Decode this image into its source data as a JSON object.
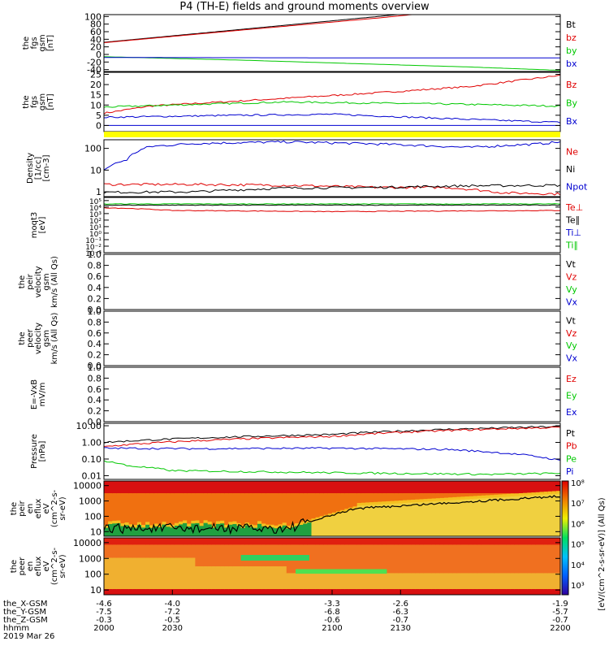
{
  "title": "P4 (TH-E) fields and ground moments overview",
  "panels": [
    {
      "id": "fgs",
      "ylabel": [
        "the",
        "fgs",
        "gsm",
        "[nT]"
      ],
      "yrange": [
        -45,
        105
      ],
      "scale": "linear",
      "ticks": [
        -40,
        -20,
        0,
        20,
        40,
        60,
        80,
        100
      ],
      "legend": [
        {
          "label": "Bt",
          "color": "#000000"
        },
        {
          "label": "bz",
          "color": "#e00000"
        },
        {
          "label": "by",
          "color": "#00c800"
        },
        {
          "label": "bx",
          "color": "#0000d0"
        }
      ],
      "series": [
        {
          "name": "Bt",
          "color": "#000000",
          "x": [
            2000,
            2060,
            2120,
            2150
          ],
          "y": [
            32,
            66,
            100,
            118
          ]
        },
        {
          "name": "bz",
          "color": "#e00000",
          "x": [
            2000,
            2060,
            2120,
            2150
          ],
          "y": [
            31,
            64,
            96,
            114
          ]
        },
        {
          "name": "by",
          "color": "#00c800",
          "x": [
            2000,
            2060,
            2120,
            2160,
            2200
          ],
          "y": [
            -6,
            -15,
            -26,
            -33,
            -42
          ]
        },
        {
          "name": "bx",
          "color": "#0000d0",
          "x": [
            2000,
            2100,
            2200
          ],
          "y": [
            -8,
            -9,
            -9
          ]
        }
      ]
    },
    {
      "id": "fgs-dsl",
      "ylabel": [
        "the",
        "fgs",
        "gsm",
        "[nT]"
      ],
      "yrange": [
        -3,
        26
      ],
      "scale": "linear",
      "ticks": [
        0,
        5,
        10,
        15,
        20,
        25
      ],
      "legend": [
        {
          "label": "Bz",
          "color": "#e00000"
        },
        {
          "label": "By",
          "color": "#00c800"
        },
        {
          "label": "Bx",
          "color": "#0000d0"
        }
      ],
      "series": [
        {
          "name": "Bz",
          "color": "#e00000",
          "x": [
            2000,
            2020,
            2060,
            2120,
            2160,
            2200
          ],
          "y": [
            6,
            9.5,
            12,
            16,
            19,
            24.5
          ]
        },
        {
          "name": "By",
          "color": "#00c800",
          "x": [
            2000,
            2030,
            2080,
            2150,
            2200
          ],
          "y": [
            9,
            10,
            11.5,
            10.5,
            9.5
          ]
        },
        {
          "name": "Bx",
          "color": "#0000d0",
          "x": [
            2000,
            2060,
            2100,
            2160,
            2200
          ],
          "y": [
            4,
            5,
            5.5,
            3,
            1.5
          ]
        },
        {
          "name": "zero",
          "color": "#0000d0",
          "x": [
            2000,
            2200
          ],
          "y": [
            0,
            0
          ]
        }
      ]
    },
    {
      "id": "density",
      "ylabel": [
        "Density",
        "[1/cc]",
        "[cm-3]"
      ],
      "yrange": [
        0.6,
        250
      ],
      "scale": "log",
      "ticks": [
        1,
        10,
        100
      ],
      "legend": [
        {
          "label": "Ne",
          "color": "#e00000"
        },
        {
          "label": "Ni",
          "color": "#000000"
        },
        {
          "label": "Npot",
          "color": "#0000d0"
        }
      ],
      "series": [
        {
          "name": "Npot",
          "color": "#0000d0",
          "x": [
            2000,
            2010,
            2020,
            2040,
            2080,
            2120,
            2160,
            2190,
            2200
          ],
          "y": [
            10,
            30,
            120,
            170,
            200,
            160,
            110,
            160,
            200
          ]
        },
        {
          "name": "Ne",
          "color": "#e00000",
          "x": [
            2000,
            2040,
            2080,
            2120,
            2150,
            2175,
            2200
          ],
          "y": [
            2.2,
            2.2,
            2.0,
            1.6,
            1.6,
            0.9,
            0.8
          ]
        },
        {
          "name": "Ni",
          "color": "#000000",
          "x": [
            2000,
            2040,
            2080,
            2120,
            2160,
            2200
          ],
          "y": [
            0.95,
            1.0,
            1.5,
            1.6,
            1.9,
            2.0
          ]
        }
      ]
    },
    {
      "id": "moqt",
      "ylabel": [
        "moqt3",
        "[eV]"
      ],
      "yrange": [
        0.001,
        300000
      ],
      "scale": "log",
      "ticks": [
        0.001,
        0.01,
        0.1,
        1,
        10,
        100,
        1000,
        10000,
        100000
      ],
      "legend": [
        {
          "label": "Te⊥",
          "color": "#e00000"
        },
        {
          "label": "Te∥",
          "color": "#000000"
        },
        {
          "label": "Ti⊥",
          "color": "#0000d0"
        },
        {
          "label": "Ti∥",
          "color": "#00c800"
        }
      ],
      "series": [
        {
          "name": "Ti",
          "color": "#00c800",
          "x": [
            2000,
            2200
          ],
          "y": [
            30000,
            30000
          ]
        },
        {
          "name": "Te",
          "color": "#000000",
          "x": [
            2000,
            2200
          ],
          "y": [
            20000,
            20000
          ]
        },
        {
          "name": "Tep",
          "color": "#e00000",
          "x": [
            2000,
            2030,
            2100,
            2200
          ],
          "y": [
            8000,
            3000,
            2000,
            3000
          ]
        }
      ]
    },
    {
      "id": "peir-vel",
      "ylabel": [
        "the",
        "peir",
        "velocity",
        "gsm",
        "km/s (All Qs)"
      ],
      "yrange": [
        0,
        1
      ],
      "scale": "linear",
      "ticks": [
        0.0,
        0.2,
        0.4,
        0.6,
        0.8,
        1.0
      ],
      "legend": [
        {
          "label": "Vt",
          "color": "#000000"
        },
        {
          "label": "Vz",
          "color": "#e00000"
        },
        {
          "label": "Vy",
          "color": "#00c800"
        },
        {
          "label": "Vx",
          "color": "#0000d0"
        }
      ],
      "series": []
    },
    {
      "id": "peer-vel",
      "ylabel": [
        "the",
        "peer",
        "velocity",
        "gsm",
        "km/s (All Qs)"
      ],
      "yrange": [
        0,
        1
      ],
      "scale": "linear",
      "ticks": [
        0.0,
        0.2,
        0.4,
        0.6,
        0.8,
        1.0
      ],
      "legend": [
        {
          "label": "Vt",
          "color": "#000000"
        },
        {
          "label": "Vz",
          "color": "#e00000"
        },
        {
          "label": "Vy",
          "color": "#00c800"
        },
        {
          "label": "Vx",
          "color": "#0000d0"
        }
      ],
      "series": []
    },
    {
      "id": "efield",
      "ylabel": [
        "E=-VxB",
        "mV/m"
      ],
      "yrange": [
        0,
        1
      ],
      "scale": "linear",
      "ticks": [
        0.0,
        0.2,
        0.4,
        0.6,
        0.8,
        1.0
      ],
      "legend": [
        {
          "label": "Ez",
          "color": "#e00000"
        },
        {
          "label": "Ey",
          "color": "#00c800"
        },
        {
          "label": "Ex",
          "color": "#0000d0"
        }
      ],
      "series": []
    },
    {
      "id": "pressure",
      "ylabel": [
        "Pressure",
        "[nPa]"
      ],
      "yrange": [
        0.006,
        14
      ],
      "scale": "log",
      "ticks": [
        0.01,
        0.1,
        1.0,
        10.0
      ],
      "tick_labels": [
        "0.01",
        "0.10",
        "1.00",
        "10.00"
      ],
      "legend": [
        {
          "label": "Pt",
          "color": "#000000"
        },
        {
          "label": "Pb",
          "color": "#e00000"
        },
        {
          "label": "Pe",
          "color": "#00c800"
        },
        {
          "label": "Pi",
          "color": "#0000d0"
        }
      ],
      "series": [
        {
          "name": "Pt",
          "color": "#000000",
          "x": [
            2000,
            2100,
            2200
          ],
          "y": [
            1.0,
            3.0,
            9.0
          ]
        },
        {
          "name": "Pb",
          "color": "#e00000",
          "x": [
            2000,
            2100,
            2200
          ],
          "y": [
            0.55,
            2.3,
            8.0
          ]
        },
        {
          "name": "Pi",
          "color": "#0000d0",
          "x": [
            2000,
            2040,
            2100,
            2150,
            2180,
            2200
          ],
          "y": [
            0.45,
            0.42,
            0.45,
            0.38,
            0.2,
            0.08
          ]
        },
        {
          "name": "Pe",
          "color": "#00c800",
          "x": [
            2000,
            2010,
            2030,
            2100,
            2170,
            2200
          ],
          "y": [
            0.08,
            0.04,
            0.02,
            0.015,
            0.012,
            0.014
          ]
        }
      ]
    },
    {
      "id": "peir-en",
      "ylabel": [
        "the",
        "peir",
        "en",
        "eflux",
        "eV",
        "(cm^2-s-",
        "sr-eV)"
      ],
      "yrange": [
        5,
        20000
      ],
      "scale": "log",
      "spectrogram": "ion",
      "ticks": [
        10,
        100,
        1000,
        10000
      ],
      "legend": []
    },
    {
      "id": "peer-en",
      "ylabel": [
        "the",
        "peer",
        "en",
        "eflux",
        "eV",
        "(cm^2-s-",
        "sr-eV)"
      ],
      "yrange": [
        5,
        20000
      ],
      "scale": "log",
      "spectrogram": "electron",
      "ticks": [
        10,
        100,
        1000,
        10000
      ],
      "legend": []
    }
  ],
  "colorbar": {
    "label": "[eV/(cm^2-s-sr-eV)] (All Qs)",
    "ticks": [
      "10³",
      "10⁴",
      "10⁵",
      "10⁶",
      "10⁷",
      "10⁸"
    ]
  },
  "x_axis": {
    "range": [
      2000,
      2200
    ],
    "row_labels": [
      "the_X-GSM",
      "the_Y-GSM",
      "the_Z-GSM",
      "hhmm",
      "2019 Mar 26"
    ],
    "ticks": [
      {
        "t": 2000,
        "x": "-4.6",
        "y": "-7.5",
        "z": "-0.3",
        "hhmm": "2000"
      },
      {
        "t": 2030,
        "x": "-4.0",
        "y": "-7.2",
        "z": "-0.5",
        "hhmm": "2030"
      },
      {
        "t": 2100,
        "x": "-3.3",
        "y": "-6.8",
        "z": "-0.6",
        "hhmm": "2100"
      },
      {
        "t": 2130,
        "x": "-2.6",
        "y": "-6.3",
        "z": "-0.7",
        "hhmm": "2130"
      },
      {
        "t": 2200,
        "x": "-1.9",
        "y": "-5.7",
        "z": "-0.7",
        "hhmm": "2200"
      }
    ]
  },
  "chart_data": {
    "type": "line",
    "title": "P4 (TH-E) fields and ground moments overview",
    "x_label": "hhmm",
    "x_range": [
      2000,
      2200
    ]
  }
}
